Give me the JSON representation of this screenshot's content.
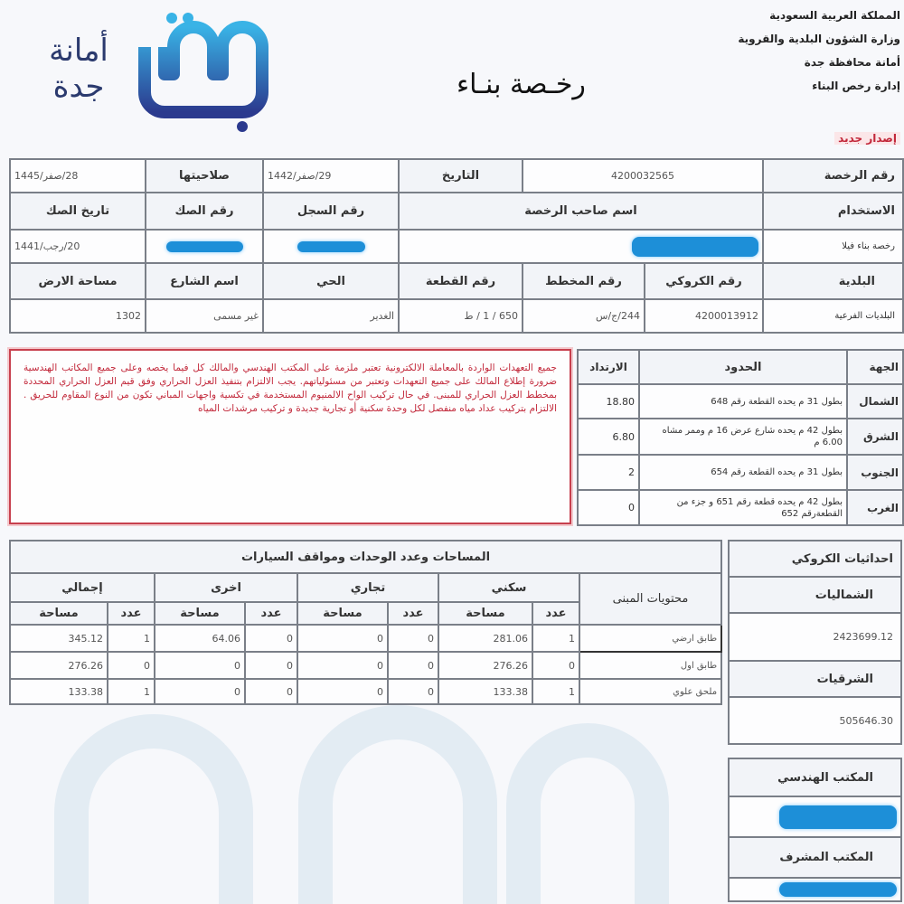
{
  "header": {
    "lines": [
      "المملكة العربية السعودية",
      "وزارة الشؤون البلدية والقروية",
      "أمانة محافظة جدة",
      "إدارة رخص البناء"
    ],
    "issue_type": "إصدار جديد",
    "title": "رخـصة بنـاء",
    "logo_text": "أمانة جدة",
    "logo_mark": "جدة"
  },
  "permit": {
    "permit_no_label": "رقم الرخصة",
    "permit_no": "4200032565",
    "date_label": "التاريخ",
    "date": "29/صفر/1442",
    "validity_label": "صلاحيتها",
    "validity": "28/صفر/1445",
    "usage_label": "الاستخدام",
    "usage": "رخصة بناء فيلا",
    "owner_label": "اسم صاحب الرخصة",
    "record_label": "رقم السجل",
    "deed_no_label": "رقم الصك",
    "deed_date_label": "تاريخ الصك",
    "deed_date": "20/رجب/1441",
    "municipality_label": "البلدية",
    "municipality": "البلديات الفرعية",
    "sketch_no_label": "رقم الكروكي",
    "sketch_no": "4200013912",
    "plan_no_label": "رقم المخطط",
    "plan_no": "244/ج/س",
    "plot_no_label": "رقم القطعة",
    "plot_no": "650 / 1 / ط",
    "district_label": "الحي",
    "district": "الغدير",
    "street_label": "اسم الشارع",
    "street": "غير مسمى",
    "land_area_label": "مساحة الارض",
    "land_area": "1302"
  },
  "notice": "جميع التعهدات الواردة بالمعاملة الالكترونية تعتبر ملزمة على المكتب الهندسي والمالك كل فيما يخصه وعلى جميع المكاتب الهندسية ضرورة إطلاع المالك على جميع التعهدات وتعتبر من مسئولياتهم. يجب الالتزام بتنفيذ العزل الحراري وفق قيم العزل الحراري المحددة بمخطط العزل الحراري للمبنى. في حال تركيب الواح الالمنيوم المستخدمة في تكسية واجهات المباني تكون من النوع المقاوم للحريق . الالتزام بتركيب عداد مياه منفصل لكل وحدة سكنية أو تجارية جديدة و تركيب مرشدات المياه",
  "boundaries": {
    "headers": {
      "direction": "الجهة",
      "limits": "الحدود",
      "setback": "الارتداد"
    },
    "rows": [
      {
        "direction": "الشمال",
        "limits": "بطول 31 م يحده القطعة رقم 648",
        "setback": "18.80"
      },
      {
        "direction": "الشرق",
        "limits": "بطول 42 م يحده شارع عرض 16 م وممر مشاه 6.00 م",
        "setback": "6.80"
      },
      {
        "direction": "الجنوب",
        "limits": "بطول 31 م يحده القطعة رقم 654",
        "setback": "2"
      },
      {
        "direction": "الغرب",
        "limits": "بطول 42 م يحده قطعة رقم 651 و جزء من القطعةرقم 652",
        "setback": "0"
      }
    ]
  },
  "areas": {
    "title": "المساحات وعدد الوحدات ومواقف السيارات",
    "contents_label": "محتويات المبنى",
    "groups": [
      "سكني",
      "تجاري",
      "اخرى",
      "إجمالي"
    ],
    "count_label": "عدد",
    "area_label": "مساحة",
    "rows": [
      {
        "name": "طابق ارضي",
        "res_n": "1",
        "res_a": "281.06",
        "com_n": "0",
        "com_a": "0",
        "oth_n": "0",
        "oth_a": "64.06",
        "tot_n": "1",
        "tot_a": "345.12"
      },
      {
        "name": "طابق اول",
        "res_n": "0",
        "res_a": "276.26",
        "com_n": "0",
        "com_a": "0",
        "oth_n": "0",
        "oth_a": "0",
        "tot_n": "0",
        "tot_a": "276.26"
      },
      {
        "name": "ملحق علوي",
        "res_n": "1",
        "res_a": "133.38",
        "com_n": "0",
        "com_a": "0",
        "oth_n": "0",
        "oth_a": "0",
        "tot_n": "1",
        "tot_a": "133.38"
      }
    ]
  },
  "coords": {
    "title": "احداثيات الكروكي",
    "north_label": "الشماليات",
    "north": "2423699.12",
    "east_label": "الشرقيات",
    "east": "505646.30"
  },
  "offices": {
    "engineering_label": "المكتب الهندسي",
    "supervising_label": "المكتب المشرف"
  },
  "colors": {
    "redaction": "#1d8fd8",
    "notice_red": "#c2283a",
    "logo_blue": "#2b3a6e"
  }
}
